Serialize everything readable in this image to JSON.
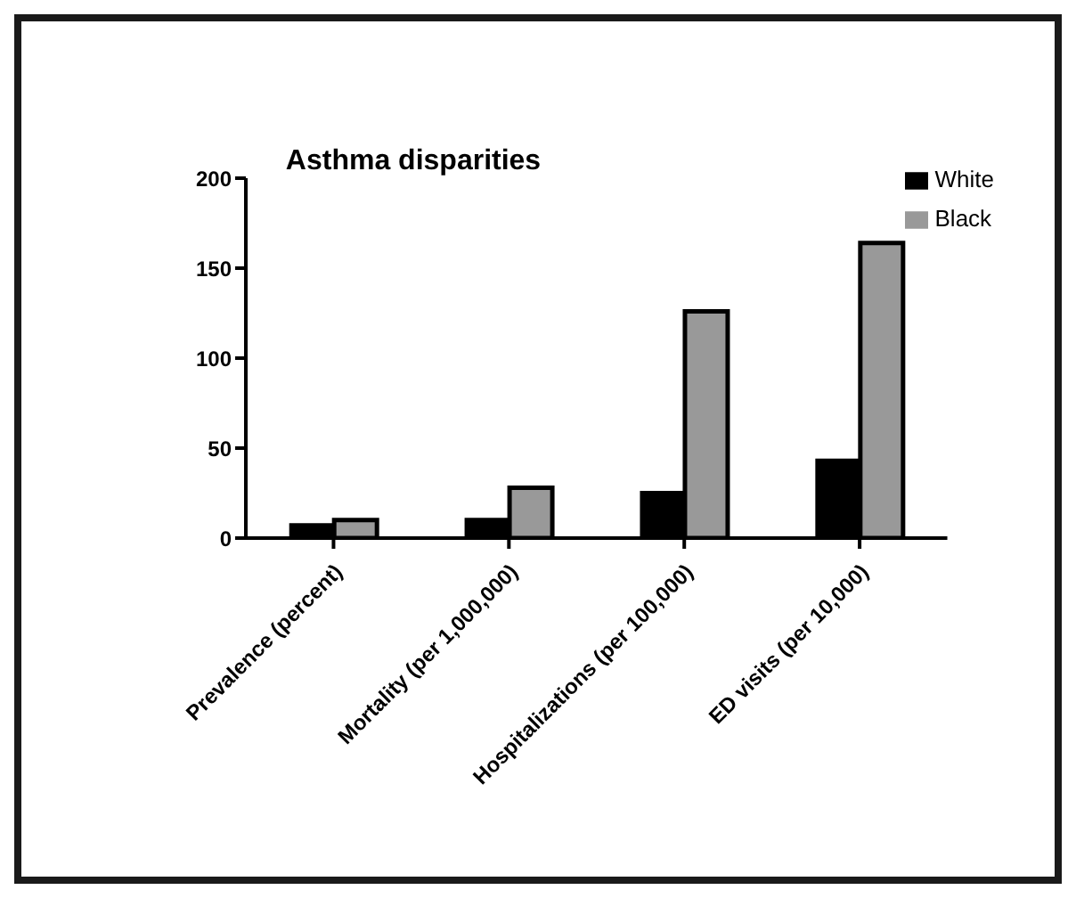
{
  "chart_data": {
    "type": "bar",
    "title": "Asthma disparities",
    "categories": [
      "Prevalence (percent)",
      "Mortality (per 1,000,000)",
      "Hospitalizations (per 100,000)",
      "ED visits (per 10,000)"
    ],
    "series": [
      {
        "name": "White",
        "color": "#000000",
        "values": [
          7,
          10,
          25,
          43
        ]
      },
      {
        "name": "Black",
        "color": "#999999",
        "values": [
          10,
          28,
          126,
          164
        ]
      }
    ],
    "ylim": [
      0,
      200
    ],
    "yticks": [
      0,
      50,
      100,
      150,
      200
    ],
    "grid": false,
    "legend": "top right"
  }
}
